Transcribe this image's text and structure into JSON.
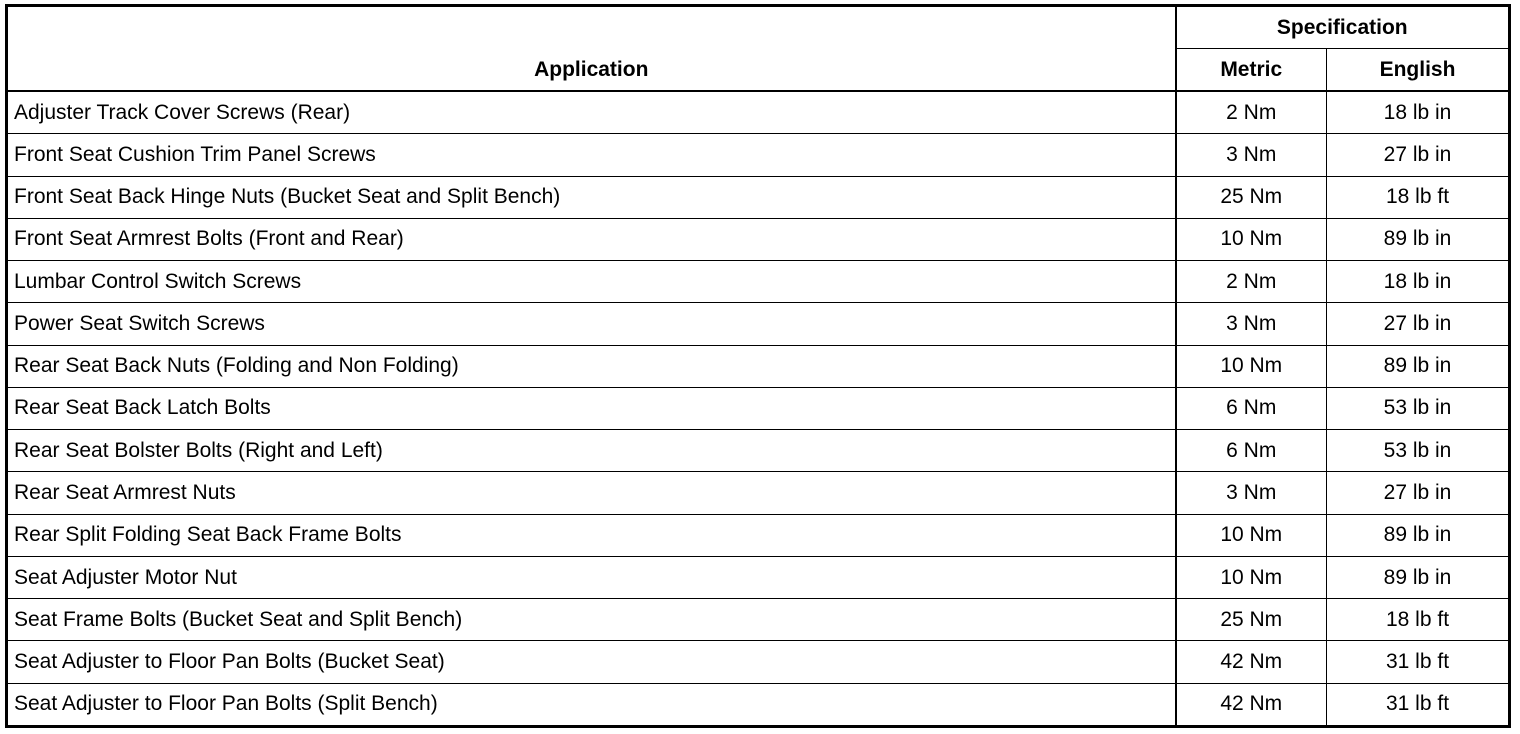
{
  "table": {
    "headers": {
      "application": "Application",
      "specification": "Specification",
      "metric": "Metric",
      "english": "English"
    },
    "rows": [
      {
        "application": "Adjuster Track Cover Screws (Rear)",
        "metric": "2 Nm",
        "english": "18 lb in"
      },
      {
        "application": "Front Seat Cushion Trim Panel Screws",
        "metric": "3 Nm",
        "english": "27 lb in"
      },
      {
        "application": "Front Seat Back Hinge Nuts (Bucket Seat and Split Bench)",
        "metric": "25 Nm",
        "english": "18 lb ft"
      },
      {
        "application": "Front Seat Armrest Bolts (Front and Rear)",
        "metric": "10 Nm",
        "english": "89 lb in"
      },
      {
        "application": "Lumbar Control Switch Screws",
        "metric": "2 Nm",
        "english": "18 lb in"
      },
      {
        "application": "Power Seat Switch Screws",
        "metric": "3 Nm",
        "english": "27 lb in"
      },
      {
        "application": "Rear Seat Back Nuts (Folding and Non Folding)",
        "metric": "10 Nm",
        "english": "89 lb in"
      },
      {
        "application": "Rear Seat Back Latch Bolts",
        "metric": "6 Nm",
        "english": "53 lb in"
      },
      {
        "application": "Rear Seat Bolster Bolts (Right and Left)",
        "metric": "6 Nm",
        "english": "53 lb in"
      },
      {
        "application": "Rear Seat Armrest Nuts",
        "metric": "3 Nm",
        "english": "27 lb in"
      },
      {
        "application": "Rear Split Folding Seat Back Frame Bolts",
        "metric": "10 Nm",
        "english": "89 lb in"
      },
      {
        "application": "Seat Adjuster Motor Nut",
        "metric": "10 Nm",
        "english": "89 lb in"
      },
      {
        "application": "Seat Frame Bolts (Bucket Seat and Split Bench)",
        "metric": "25 Nm",
        "english": "18 lb ft"
      },
      {
        "application": "Seat Adjuster to Floor Pan Bolts (Bucket Seat)",
        "metric": "42 Nm",
        "english": "31 lb ft"
      },
      {
        "application": "Seat Adjuster to Floor Pan Bolts (Split Bench)",
        "metric": "42 Nm",
        "english": "31 lb ft"
      }
    ]
  }
}
